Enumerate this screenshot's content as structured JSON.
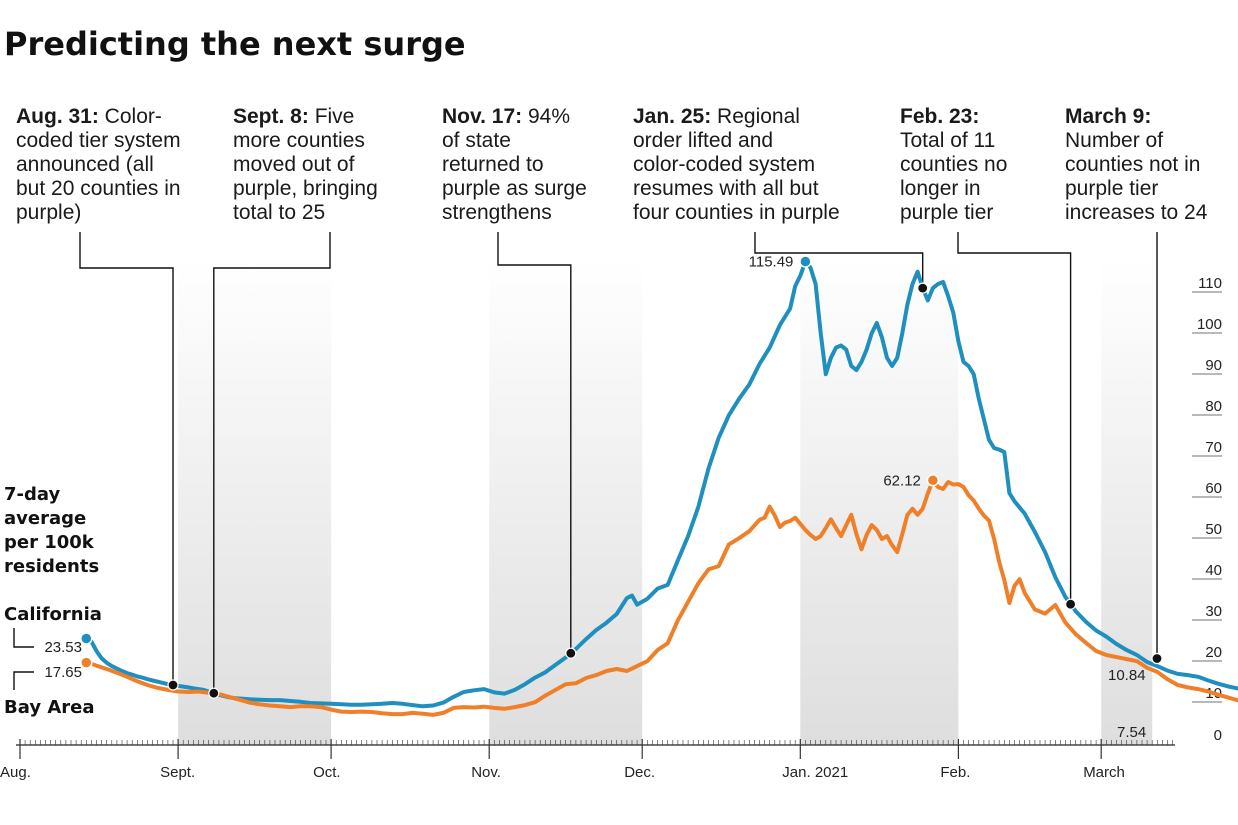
{
  "chart_data": {
    "type": "line",
    "title": "Predicting the next surge",
    "ylabel": "7-day average per 100k residents",
    "y_ticks": [
      "110",
      "100",
      "90",
      "80",
      "70",
      "60",
      "50",
      "40",
      "30",
      "20",
      "10",
      "0"
    ],
    "ylim": [
      0,
      110
    ],
    "x_ticks": [
      "Aug.",
      "Sept.",
      "Oct.",
      "Nov.",
      "Dec.",
      "Jan. 2021",
      "Feb.",
      "March"
    ],
    "xlim": [
      "2020-08-01",
      "2021-03-20"
    ],
    "series": [
      {
        "name": "California",
        "color": "#1f8fbf",
        "start_label": "23.53",
        "peak_label": "115.49",
        "end_label": "10.84",
        "start_date": "2020-08-14",
        "points": [
          [
            0,
            23.53
          ],
          [
            1,
            22.8
          ],
          [
            2,
            20.5
          ],
          [
            3,
            18.7
          ],
          [
            4,
            17.6
          ],
          [
            5,
            16.8
          ],
          [
            6,
            16.2
          ],
          [
            7,
            15.6
          ],
          [
            8,
            15.1
          ],
          [
            9,
            14.7
          ],
          [
            10,
            14.3
          ],
          [
            11,
            14
          ],
          [
            12,
            13.6
          ],
          [
            13,
            13.3
          ],
          [
            14,
            13
          ],
          [
            15,
            12.7
          ],
          [
            16,
            12.4
          ],
          [
            17,
            12.2
          ],
          [
            18,
            12
          ],
          [
            19,
            11.8
          ],
          [
            20,
            11.6
          ],
          [
            21,
            11.4
          ],
          [
            22,
            11.2
          ],
          [
            23,
            11
          ],
          [
            24,
            10.6
          ],
          [
            25,
            10.2
          ],
          [
            26,
            9.8
          ],
          [
            27,
            9.5
          ],
          [
            28,
            9.2
          ],
          [
            29,
            9
          ],
          [
            30,
            8.9
          ],
          [
            32,
            8.7
          ],
          [
            34,
            8.6
          ],
          [
            36,
            8.5
          ],
          [
            38,
            8.5
          ],
          [
            40,
            8.3
          ],
          [
            42,
            8.1
          ],
          [
            44,
            7.8
          ],
          [
            46,
            7.7
          ],
          [
            48,
            7.6
          ],
          [
            50,
            7.5
          ],
          [
            52,
            7.4
          ],
          [
            54,
            7.4
          ],
          [
            56,
            7.5
          ],
          [
            58,
            7.6
          ],
          [
            60,
            7.8
          ],
          [
            62,
            7.6
          ],
          [
            64,
            7.3
          ],
          [
            66,
            7
          ],
          [
            68,
            7.2
          ],
          [
            70,
            7.9
          ],
          [
            72,
            9.3
          ],
          [
            74,
            10.5
          ],
          [
            76,
            10.9
          ],
          [
            78,
            11.2
          ],
          [
            80,
            10.4
          ],
          [
            82,
            10.1
          ],
          [
            84,
            11
          ],
          [
            86,
            12.4
          ],
          [
            88,
            14
          ],
          [
            90,
            15.3
          ],
          [
            92,
            17.1
          ],
          [
            94,
            18.9
          ],
          [
            96,
            21
          ],
          [
            98,
            23.4
          ],
          [
            100,
            25.6
          ],
          [
            102,
            27.4
          ],
          [
            104,
            29.5
          ],
          [
            106,
            33.4
          ],
          [
            107,
            34
          ],
          [
            108,
            31.8
          ],
          [
            110,
            33.2
          ],
          [
            112,
            35.7
          ],
          [
            114,
            36.6
          ],
          [
            116,
            42.6
          ],
          [
            118,
            48.5
          ],
          [
            120,
            55.6
          ],
          [
            122,
            65
          ],
          [
            124,
            72.5
          ],
          [
            126,
            78
          ],
          [
            128,
            82
          ],
          [
            130,
            85.5
          ],
          [
            132,
            90.5
          ],
          [
            134,
            94.5
          ],
          [
            136,
            100
          ],
          [
            138,
            104
          ],
          [
            139,
            109.5
          ],
          [
            140,
            112
          ],
          [
            141,
            115.49
          ],
          [
            142,
            114
          ],
          [
            143,
            110
          ],
          [
            144,
            98
          ],
          [
            145,
            88
          ],
          [
            146,
            92
          ],
          [
            147,
            94.5
          ],
          [
            148,
            95
          ],
          [
            149,
            94
          ],
          [
            150,
            90
          ],
          [
            151,
            89
          ],
          [
            152,
            91
          ],
          [
            153,
            94
          ],
          [
            154,
            98
          ],
          [
            155,
            100.5
          ],
          [
            156,
            97
          ],
          [
            157,
            92
          ],
          [
            158,
            90
          ],
          [
            159,
            92
          ],
          [
            160,
            98
          ],
          [
            161,
            105
          ],
          [
            162,
            110
          ],
          [
            163,
            113
          ],
          [
            164,
            109
          ],
          [
            165,
            106
          ],
          [
            166,
            109
          ],
          [
            167,
            110
          ],
          [
            168,
            110.5
          ],
          [
            169,
            107
          ],
          [
            170,
            103
          ],
          [
            171,
            96
          ],
          [
            172,
            91
          ],
          [
            173,
            90
          ],
          [
            174,
            88
          ],
          [
            175,
            82
          ],
          [
            176,
            77
          ],
          [
            177,
            72
          ],
          [
            178,
            70
          ],
          [
            179,
            69.6
          ],
          [
            180,
            69
          ],
          [
            181,
            59
          ],
          [
            182,
            57
          ],
          [
            184,
            54
          ],
          [
            186,
            49.5
          ],
          [
            188,
            44.6
          ],
          [
            190,
            38.5
          ],
          [
            192,
            33.6
          ],
          [
            194,
            30.2
          ],
          [
            196,
            27.6
          ],
          [
            198,
            25.5
          ],
          [
            200,
            24
          ],
          [
            202,
            22.2
          ],
          [
            204,
            20.7
          ],
          [
            206,
            19.5
          ],
          [
            208,
            17.8
          ],
          [
            210,
            16.8
          ],
          [
            212,
            15.7
          ],
          [
            214,
            14.9
          ],
          [
            216,
            14.6
          ],
          [
            218,
            14.2
          ],
          [
            220,
            13.3
          ],
          [
            222,
            12.5
          ],
          [
            224,
            11.8
          ],
          [
            226,
            11.3
          ],
          [
            228,
            10.84
          ]
        ]
      },
      {
        "name": "Bay Area",
        "color": "#f07f2a",
        "start_label": "17.65",
        "peak_label": "62.12",
        "end_label": "7.54",
        "start_date": "2020-08-14",
        "points": [
          [
            0,
            17.65
          ],
          [
            1,
            17.4
          ],
          [
            2,
            16.9
          ],
          [
            4,
            16.1
          ],
          [
            6,
            15.2
          ],
          [
            8,
            14.2
          ],
          [
            10,
            13.1
          ],
          [
            12,
            12.2
          ],
          [
            14,
            11.5
          ],
          [
            16,
            11
          ],
          [
            18,
            10.6
          ],
          [
            20,
            10.5
          ],
          [
            22,
            10.6
          ],
          [
            24,
            10.3
          ],
          [
            26,
            10
          ],
          [
            28,
            9.3
          ],
          [
            30,
            8.6
          ],
          [
            32,
            7.9
          ],
          [
            34,
            7.5
          ],
          [
            36,
            7.2
          ],
          [
            38,
            7
          ],
          [
            40,
            6.8
          ],
          [
            42,
            7
          ],
          [
            44,
            7
          ],
          [
            46,
            6.8
          ],
          [
            48,
            6.2
          ],
          [
            50,
            5.7
          ],
          [
            52,
            5.6
          ],
          [
            54,
            5.7
          ],
          [
            56,
            5.6
          ],
          [
            58,
            5.3
          ],
          [
            60,
            5.1
          ],
          [
            62,
            5.1
          ],
          [
            64,
            5.4
          ],
          [
            66,
            5.2
          ],
          [
            68,
            4.9
          ],
          [
            70,
            5.4
          ],
          [
            72,
            6.6
          ],
          [
            74,
            6.8
          ],
          [
            76,
            6.7
          ],
          [
            78,
            6.9
          ],
          [
            80,
            6.6
          ],
          [
            82,
            6.4
          ],
          [
            84,
            6.8
          ],
          [
            86,
            7.3
          ],
          [
            88,
            8
          ],
          [
            90,
            9.6
          ],
          [
            92,
            11
          ],
          [
            94,
            12.4
          ],
          [
            96,
            12.6
          ],
          [
            98,
            13.9
          ],
          [
            100,
            14.6
          ],
          [
            102,
            15.6
          ],
          [
            104,
            16.1
          ],
          [
            106,
            15.6
          ],
          [
            108,
            16.8
          ],
          [
            110,
            18
          ],
          [
            112,
            20.7
          ],
          [
            114,
            22.4
          ],
          [
            116,
            28
          ],
          [
            118,
            32.5
          ],
          [
            120,
            37
          ],
          [
            122,
            40.4
          ],
          [
            124,
            41.2
          ],
          [
            126,
            46.5
          ],
          [
            128,
            48
          ],
          [
            130,
            49.7
          ],
          [
            132,
            52.5
          ],
          [
            133,
            53
          ],
          [
            134,
            55.7
          ],
          [
            135,
            53.5
          ],
          [
            136,
            50.7
          ],
          [
            137,
            51.8
          ],
          [
            138,
            52.2
          ],
          [
            139,
            53
          ],
          [
            140,
            51.5
          ],
          [
            141,
            50
          ],
          [
            142,
            48.8
          ],
          [
            143,
            47.8
          ],
          [
            144,
            48.5
          ],
          [
            145,
            50.5
          ],
          [
            146,
            52.6
          ],
          [
            147,
            50.5
          ],
          [
            148,
            48.5
          ],
          [
            149,
            51.2
          ],
          [
            150,
            53.7
          ],
          [
            151,
            49
          ],
          [
            152,
            45.3
          ],
          [
            153,
            48.8
          ],
          [
            154,
            51.2
          ],
          [
            155,
            50
          ],
          [
            156,
            47.8
          ],
          [
            157,
            48.5
          ],
          [
            158,
            46.3
          ],
          [
            159,
            44.6
          ],
          [
            160,
            49
          ],
          [
            161,
            53.7
          ],
          [
            162,
            55.2
          ],
          [
            163,
            53.7
          ],
          [
            164,
            55.2
          ],
          [
            165,
            58.9
          ],
          [
            166,
            62.12
          ],
          [
            167,
            60.5
          ],
          [
            168,
            60
          ],
          [
            169,
            61.7
          ],
          [
            170,
            61.1
          ],
          [
            171,
            61.2
          ],
          [
            172,
            60.5
          ],
          [
            173,
            58.5
          ],
          [
            174,
            57.2
          ],
          [
            175,
            55.2
          ],
          [
            176,
            53.5
          ],
          [
            177,
            52.3
          ],
          [
            178,
            47.8
          ],
          [
            179,
            42.2
          ],
          [
            180,
            37.8
          ],
          [
            181,
            32.2
          ],
          [
            182,
            36.4
          ],
          [
            183,
            38
          ],
          [
            184,
            34.6
          ],
          [
            186,
            30.6
          ],
          [
            188,
            29.6
          ],
          [
            190,
            31.7
          ],
          [
            192,
            27.4
          ],
          [
            194,
            24.6
          ],
          [
            196,
            22.5
          ],
          [
            198,
            20.5
          ],
          [
            200,
            19.5
          ],
          [
            202,
            19
          ],
          [
            204,
            18.5
          ],
          [
            206,
            18
          ],
          [
            208,
            16.4
          ],
          [
            210,
            15.4
          ],
          [
            212,
            13.6
          ],
          [
            214,
            12.2
          ],
          [
            216,
            11.6
          ],
          [
            218,
            11.2
          ],
          [
            220,
            10.6
          ],
          [
            222,
            9.8
          ],
          [
            224,
            9.1
          ],
          [
            226,
            8.4
          ],
          [
            228,
            7.54
          ]
        ]
      }
    ],
    "shaded_month_bands": [
      "Sept.",
      "Nov.",
      "Jan. 2021",
      "March"
    ],
    "annotations": [
      {
        "date_label": "Aug. 31:",
        "text": [
          "Color-",
          "coded tier system",
          "announced (all",
          "but 20 counties in",
          "purple)"
        ],
        "day": 17
      },
      {
        "date_label": "Sept. 8:",
        "text": [
          "Five",
          "more counties",
          "moved out of",
          "purple, bringing",
          "total to 25"
        ],
        "day": 25
      },
      {
        "date_label": "Nov. 17:",
        "text": [
          "94%",
          "of state",
          "returned to",
          "purple as surge",
          "strengthens"
        ],
        "day": 95
      },
      {
        "date_label": "Jan. 25:",
        "text": [
          "Regional",
          "order lifted and",
          "color-coded system",
          "resumes with all but",
          "four counties in purple"
        ],
        "day": 164
      },
      {
        "date_label": "Feb. 23:",
        "text": [
          "",
          "Total of 11",
          "counties no",
          "longer in",
          "purple tier"
        ],
        "day": 193
      },
      {
        "date_label": "March 9:",
        "text": [
          "",
          "Number of",
          "counties not in",
          "purple tier",
          "increases to 24"
        ],
        "day": 207
      }
    ]
  }
}
